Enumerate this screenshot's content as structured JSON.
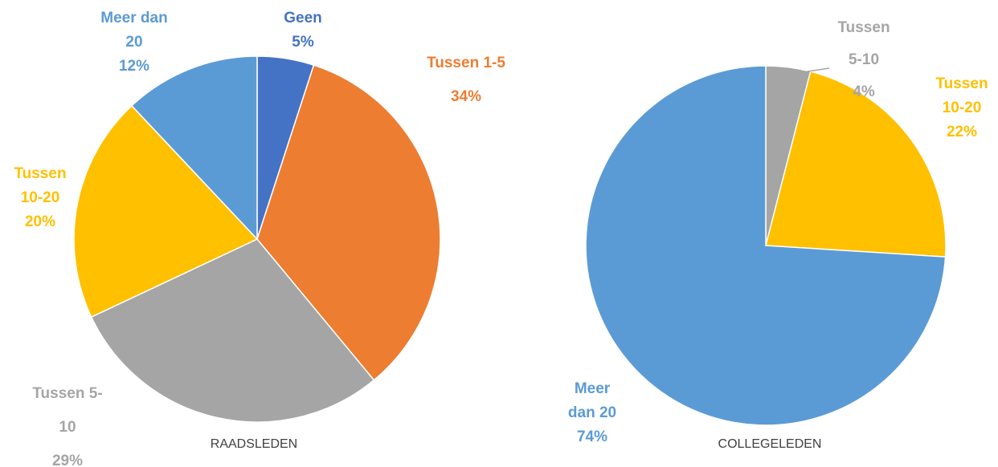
{
  "chart_data": [
    {
      "type": "pie",
      "title": "RAADSLEDEN",
      "categories": [
        "Geen",
        "Tussen 1-5",
        "Tussen 5-10",
        "Tussen 10-20",
        "Meer dan 20"
      ],
      "values": [
        5,
        34,
        29,
        20,
        12
      ],
      "value_labels": [
        "5%",
        "34%",
        "29%",
        "20%",
        "12%"
      ],
      "colors": [
        "#4472c4",
        "#ed7d31",
        "#a5a5a5",
        "#ffc000",
        "#5b9bd5"
      ]
    },
    {
      "type": "pie",
      "title": "COLLEGELEDEN",
      "categories": [
        "Tussen 5-10",
        "Tussen 10-20",
        "Meer dan 20"
      ],
      "values": [
        4,
        22,
        74
      ],
      "value_labels": [
        "4%",
        "22%",
        "74%"
      ],
      "colors": [
        "#a5a5a5",
        "#ffc000",
        "#5b9bd5"
      ]
    }
  ]
}
